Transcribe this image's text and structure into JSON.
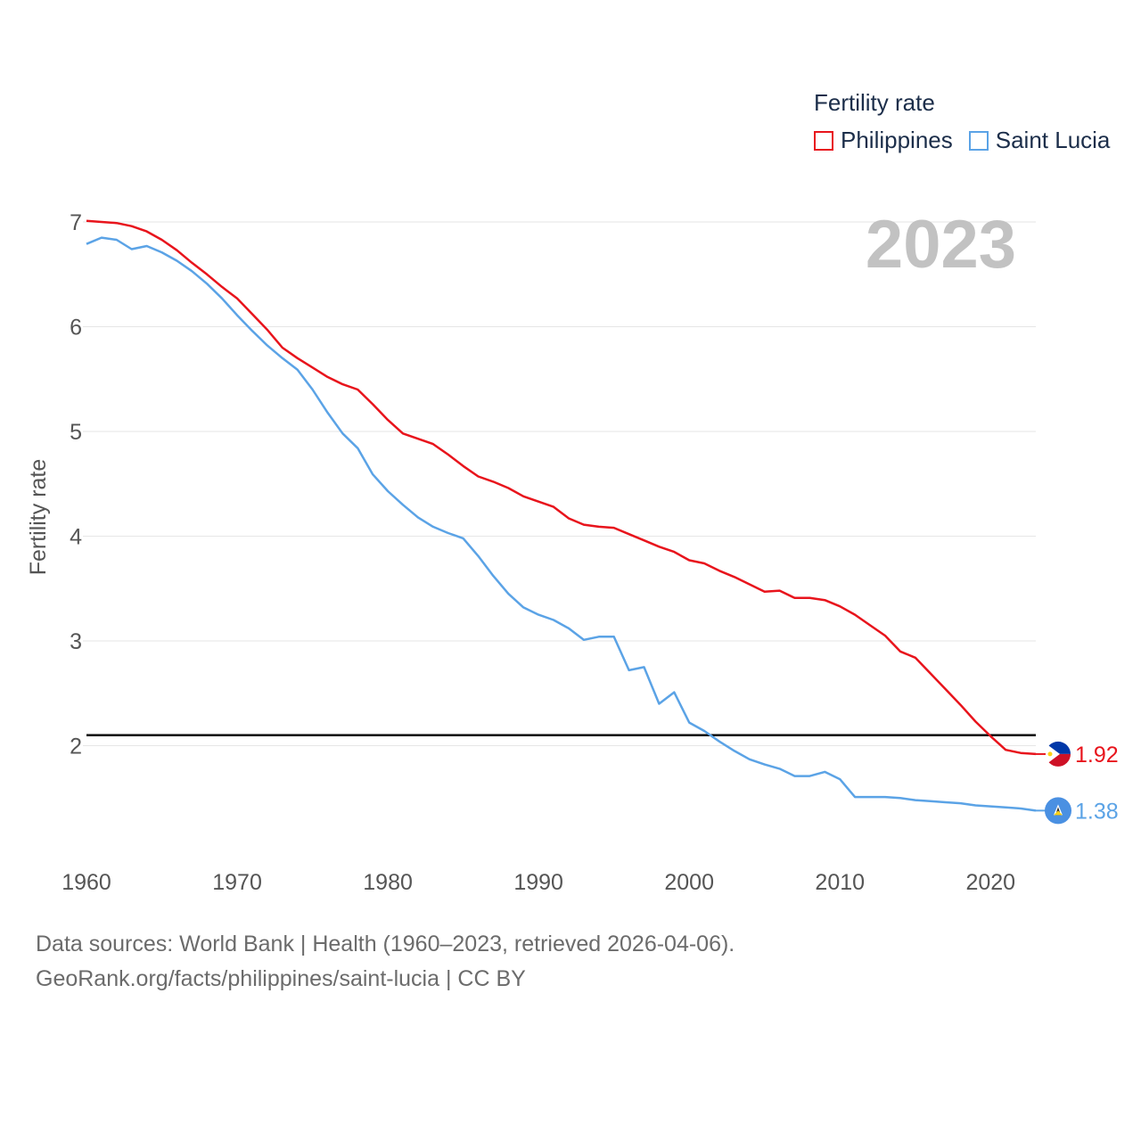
{
  "legend": {
    "title": "Fertility rate",
    "items": [
      {
        "name": "Philippines",
        "color": "#e8141c"
      },
      {
        "name": "Saint Lucia",
        "color": "#5ba3e6"
      }
    ]
  },
  "year_label": "2023",
  "footer": {
    "line1": "Data sources: World Bank | Health (1960–2023, retrieved 2026-04-06).",
    "line2": "GeoRank.org/facts/philippines/saint-lucia | CC BY"
  },
  "chart_data": {
    "type": "line",
    "title": "Fertility rate",
    "xlabel": "",
    "ylabel": "Fertility rate",
    "xlim": [
      1960,
      2023
    ],
    "ylim": [
      1,
      7
    ],
    "yticks": [
      2,
      3,
      4,
      5,
      6,
      7
    ],
    "xticks": [
      1960,
      1970,
      1980,
      1990,
      2000,
      2010,
      2020
    ],
    "grid": true,
    "reference_line": {
      "value": 2.1,
      "color": "#000000"
    },
    "x": [
      1960,
      1961,
      1962,
      1963,
      1964,
      1965,
      1966,
      1967,
      1968,
      1969,
      1970,
      1971,
      1972,
      1973,
      1974,
      1975,
      1976,
      1977,
      1978,
      1979,
      1980,
      1981,
      1982,
      1983,
      1984,
      1985,
      1986,
      1987,
      1988,
      1989,
      1990,
      1991,
      1992,
      1993,
      1994,
      1995,
      1996,
      1997,
      1998,
      1999,
      2000,
      2001,
      2002,
      2003,
      2004,
      2005,
      2006,
      2007,
      2008,
      2009,
      2010,
      2011,
      2012,
      2013,
      2014,
      2015,
      2016,
      2017,
      2018,
      2019,
      2020,
      2021,
      2022,
      2023
    ],
    "series": [
      {
        "name": "Philippines",
        "color": "#e8141c",
        "end_label": "1.92",
        "values": [
          7.01,
          7.0,
          6.99,
          6.96,
          6.91,
          6.83,
          6.73,
          6.61,
          6.5,
          6.38,
          6.27,
          6.12,
          5.97,
          5.8,
          5.7,
          5.61,
          5.52,
          5.45,
          5.4,
          5.26,
          5.11,
          4.98,
          4.93,
          4.88,
          4.78,
          4.67,
          4.57,
          4.52,
          4.46,
          4.38,
          4.33,
          4.28,
          4.17,
          4.11,
          4.09,
          4.08,
          4.02,
          3.96,
          3.9,
          3.85,
          3.77,
          3.74,
          3.67,
          3.61,
          3.54,
          3.47,
          3.48,
          3.41,
          3.41,
          3.39,
          3.33,
          3.25,
          3.15,
          3.05,
          2.9,
          2.84,
          2.69,
          2.54,
          2.39,
          2.23,
          2.09,
          1.96,
          1.93,
          1.92
        ]
      },
      {
        "name": "Saint Lucia",
        "color": "#5ba3e6",
        "end_label": "1.38",
        "values": [
          6.79,
          6.85,
          6.83,
          6.74,
          6.77,
          6.71,
          6.63,
          6.53,
          6.41,
          6.27,
          6.11,
          5.96,
          5.82,
          5.7,
          5.59,
          5.4,
          5.18,
          4.98,
          4.84,
          4.59,
          4.43,
          4.3,
          4.18,
          4.09,
          4.03,
          3.98,
          3.81,
          3.62,
          3.45,
          3.32,
          3.25,
          3.2,
          3.12,
          3.01,
          3.04,
          3.04,
          2.72,
          2.75,
          2.4,
          2.51,
          2.22,
          2.14,
          2.04,
          1.95,
          1.87,
          1.82,
          1.78,
          1.71,
          1.71,
          1.75,
          1.68,
          1.51,
          1.51,
          1.51,
          1.5,
          1.48,
          1.47,
          1.46,
          1.45,
          1.43,
          1.42,
          1.41,
          1.4,
          1.38
        ]
      }
    ]
  }
}
